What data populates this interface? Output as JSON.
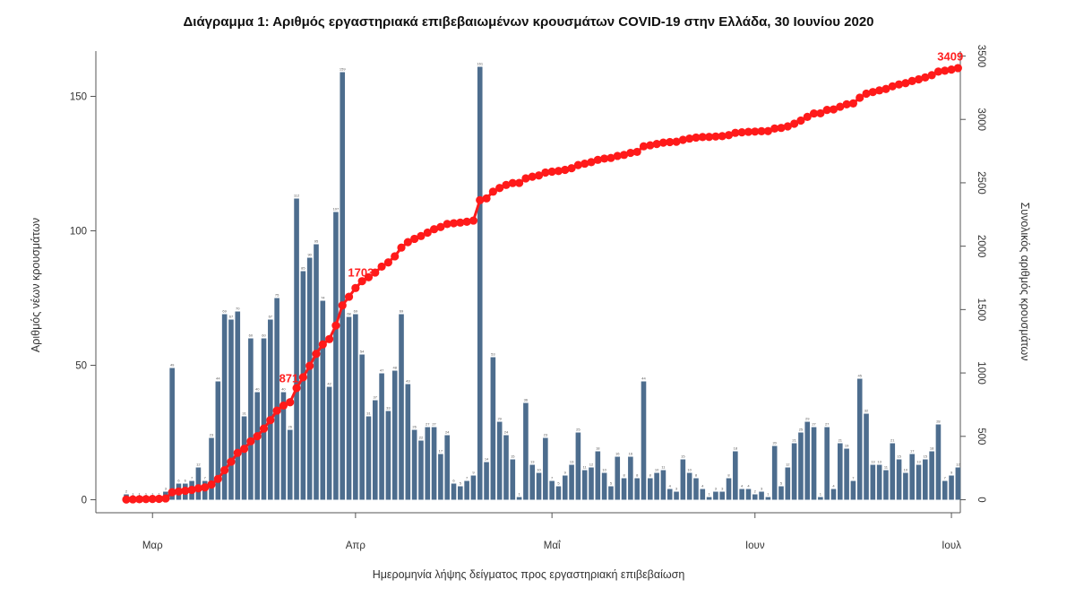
{
  "chart_data": {
    "type": "bar",
    "title": "Διάγραμμα 1: Αριθμός εργαστηριακά επιβεβαιωμένων κρουσμάτων COVID-19 στην Ελλάδα, 30 Ιουνίου 2020",
    "xlabel": "Ημερομηνία λήψης δείγματος προς εργαστηριακή επιβεβαίωση",
    "ylabel": "Αριθμός νέων κρουσμάτων",
    "y2label": "Συνολικός αριθμός κρουσμάτων",
    "x_tick_labels": [
      "Μαρ",
      "Απρ",
      "Μαΐ",
      "Ιουν",
      "Ιουλ"
    ],
    "x_tick_dates": [
      "2020-03-01",
      "2020-04-01",
      "2020-05-01",
      "2020-06-01",
      "2020-07-01"
    ],
    "ylim": [
      0,
      160
    ],
    "yticks": [
      0,
      50,
      100,
      150
    ],
    "y2lim": [
      0,
      3500
    ],
    "y2ticks": [
      0,
      500,
      1000,
      1500,
      2000,
      2500,
      3000,
      3500
    ],
    "grid": false,
    "x_start_date": "2020-02-26",
    "x_end_date": "2020-06-30",
    "series": [
      {
        "name": "new cases",
        "kind": "bar",
        "color": "#4d6d8e",
        "values": [
          2,
          1,
          1,
          1,
          1,
          1,
          3,
          49,
          6,
          6,
          7,
          12,
          7,
          23,
          44,
          69,
          67,
          70,
          31,
          60,
          40,
          60,
          67,
          75,
          40,
          26,
          112,
          85,
          90,
          95,
          74,
          42,
          107,
          159,
          68,
          69,
          54,
          31,
          37,
          47,
          33,
          48,
          69,
          43,
          26,
          22,
          27,
          27,
          17,
          24,
          6,
          5,
          7,
          9,
          161,
          14,
          53,
          29,
          24,
          15,
          1,
          36,
          13,
          10,
          23,
          7,
          5,
          9,
          13,
          25,
          11,
          12,
          18,
          10,
          5,
          16,
          8,
          16,
          8,
          44,
          8,
          10,
          11,
          4,
          3,
          15,
          10,
          8,
          4,
          1,
          3,
          3,
          8,
          18,
          4,
          4,
          2,
          3,
          1,
          20,
          5,
          12,
          21,
          25,
          29,
          27,
          1,
          27,
          4,
          21,
          19,
          7,
          45,
          32,
          13,
          13,
          11,
          21,
          15,
          10,
          17,
          13,
          15,
          18,
          28,
          7,
          9,
          12
        ]
      },
      {
        "name": "cumulative",
        "kind": "line",
        "color": "#ff1a1a",
        "values": []
      }
    ],
    "annotations": [
      {
        "text": "871",
        "date": "2020-03-21",
        "value": 871
      },
      {
        "text": "1703",
        "date": "2020-04-01",
        "value": 1703
      },
      {
        "text": "3409",
        "date": "2020-06-30",
        "value": 3409
      }
    ]
  }
}
